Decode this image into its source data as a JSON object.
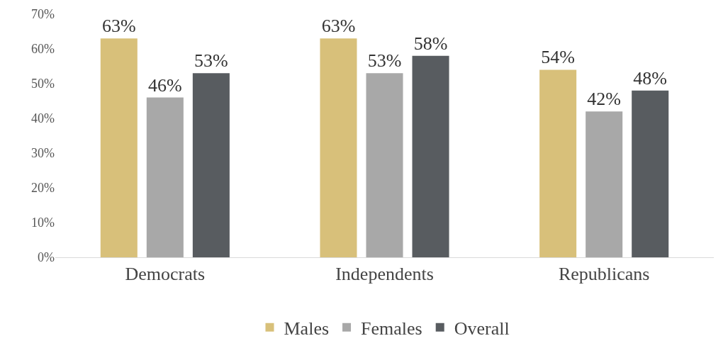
{
  "chart_data": {
    "type": "bar",
    "categories": [
      "Democrats",
      "Independents",
      "Republicans"
    ],
    "series": [
      {
        "name": "Males",
        "color": "#d8c07a",
        "values": [
          63,
          63,
          54
        ],
        "value_labels": [
          "63%",
          "63%",
          "54%"
        ]
      },
      {
        "name": "Females",
        "color": "#a8a8a8",
        "values": [
          46,
          53,
          42
        ],
        "value_labels": [
          "46%",
          "53%",
          "42%"
        ]
      },
      {
        "name": "Overall",
        "color": "#585c60",
        "values": [
          53,
          58,
          48
        ],
        "value_labels": [
          "53%",
          "58%",
          "48%"
        ]
      }
    ],
    "ylim": [
      0,
      70
    ],
    "yticks": [
      {
        "value": 0,
        "label": "0%"
      },
      {
        "value": 10,
        "label": "10%"
      },
      {
        "value": 20,
        "label": "20%"
      },
      {
        "value": 30,
        "label": "30%"
      },
      {
        "value": 40,
        "label": "40%"
      },
      {
        "value": 50,
        "label": "50%"
      },
      {
        "value": 60,
        "label": "60%"
      },
      {
        "value": 70,
        "label": "70%"
      }
    ],
    "grid": false,
    "legend": "bottom"
  }
}
